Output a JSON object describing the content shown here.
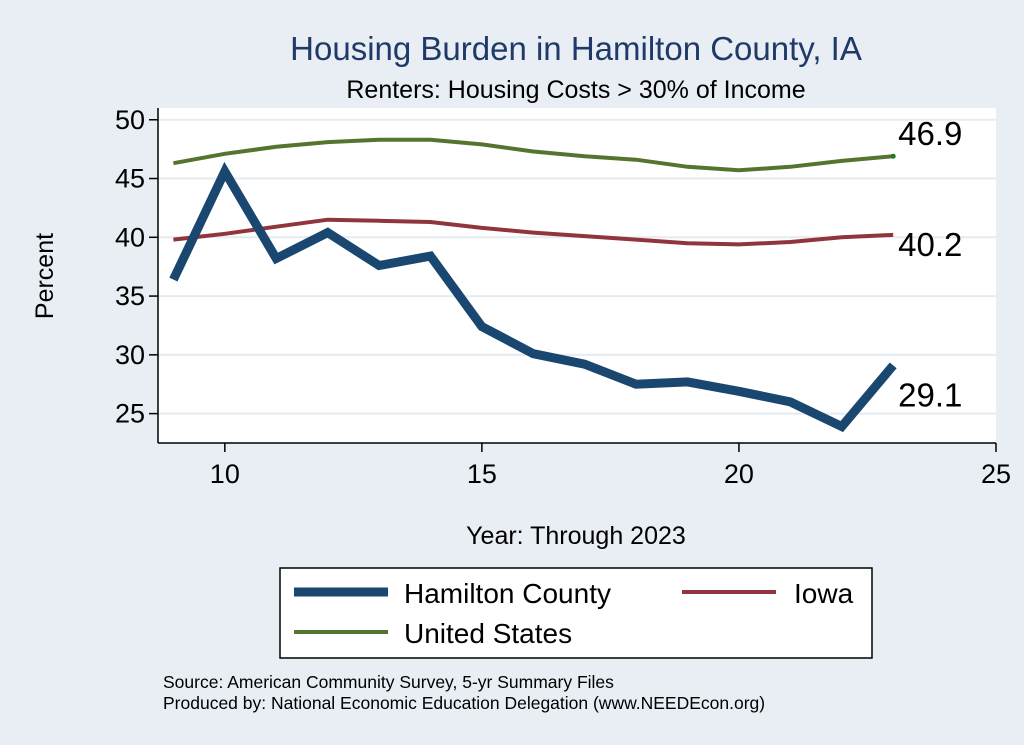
{
  "chart_data": {
    "type": "line",
    "title": "Housing Burden in Hamilton County, IA",
    "subtitle": "Renters: Housing Costs > 30% of Income",
    "xlabel": "Year: Through 2023",
    "ylabel": "Percent",
    "xlim": [
      8.7,
      25.0
    ],
    "ylim": [
      22.5,
      51.0
    ],
    "xticks": [
      10,
      15,
      20,
      25
    ],
    "yticks": [
      25,
      30,
      35,
      40,
      45,
      50
    ],
    "x": [
      9,
      10,
      11,
      12,
      13,
      14,
      15,
      16,
      17,
      18,
      19,
      20,
      21,
      22,
      23
    ],
    "series": [
      {
        "name": "Hamilton County",
        "color": "#1a476f",
        "end_label": "29.1",
        "values": [
          36.4,
          45.6,
          38.2,
          40.4,
          37.6,
          38.4,
          32.4,
          30.1,
          29.2,
          27.5,
          27.7,
          26.9,
          26.0,
          23.9,
          29.1
        ]
      },
      {
        "name": "Iowa",
        "color": "#90353b",
        "end_label": "40.2",
        "values": [
          39.8,
          40.3,
          40.9,
          41.5,
          41.4,
          41.3,
          40.8,
          40.4,
          40.1,
          39.8,
          39.5,
          39.4,
          39.6,
          40.0,
          40.2
        ]
      },
      {
        "name": "United States",
        "color": "#55752f",
        "end_label": "46.9",
        "values": [
          46.3,
          47.1,
          47.7,
          48.1,
          48.3,
          48.3,
          47.9,
          47.3,
          46.9,
          46.6,
          46.0,
          45.7,
          46.0,
          46.5,
          46.9
        ]
      }
    ],
    "legend_position": "bottom",
    "grid": true
  },
  "notes": {
    "source": "Source: American Community Survey, 5-yr Summary Files",
    "produced_by": "Produced by: National Economic Education Delegation (www.NEEDEcon.org)"
  }
}
